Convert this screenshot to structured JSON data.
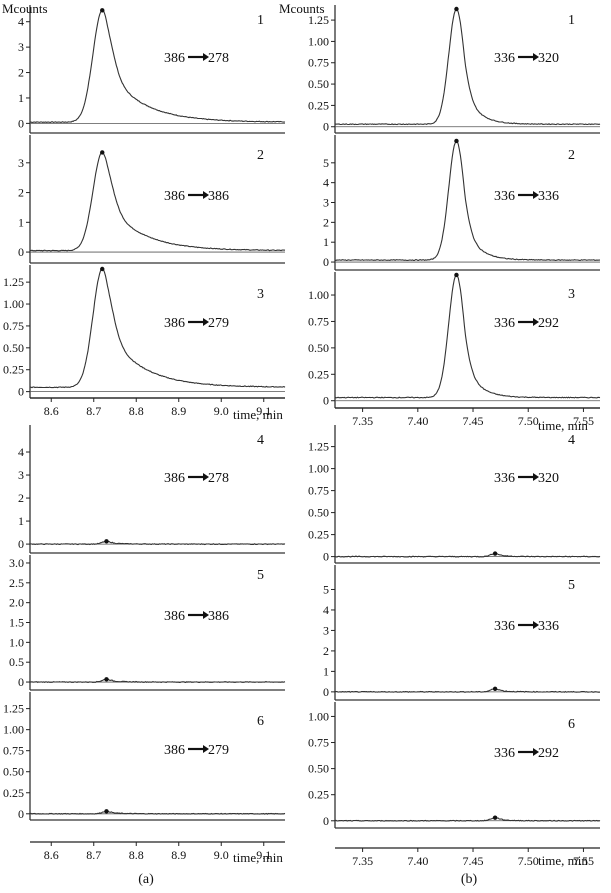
{
  "figure": {
    "columns": [
      {
        "label": "(a)",
        "y_unit_label": "Mcounts",
        "x_axis_title": "time, min",
        "x_ticks": [
          "8.6",
          "8.7",
          "8.8",
          "8.9",
          "9.0",
          "9.1"
        ],
        "xlim": [
          8.55,
          9.15
        ]
      },
      {
        "label": "(b)",
        "y_unit_label": "Mcounts",
        "x_axis_title": "time, min",
        "x_ticks": [
          "7.35",
          "7.40",
          "7.45",
          "7.50",
          "7.55"
        ],
        "xlim": [
          7.325,
          7.565
        ]
      }
    ]
  },
  "chart_data": [
    {
      "type": "line",
      "column": "a",
      "panel": "1",
      "transition": [
        "386",
        "278"
      ],
      "ylim": [
        -0.3,
        4.5
      ],
      "y_ticks": [
        "0",
        "1",
        "2",
        "3",
        "4"
      ],
      "peak": {
        "time": 8.72,
        "height": 4.4,
        "rise_width": 0.022,
        "tail_decay": 0.08,
        "baseline": 0.05
      }
    },
    {
      "type": "line",
      "column": "a",
      "panel": "2",
      "transition": [
        "386",
        "386"
      ],
      "ylim": [
        -0.3,
        3.8
      ],
      "y_ticks": [
        "0",
        "1",
        "2",
        "3"
      ],
      "peak": {
        "time": 8.72,
        "height": 3.3,
        "rise_width": 0.022,
        "tail_decay": 0.08,
        "baseline": 0.05
      }
    },
    {
      "type": "line",
      "column": "a",
      "panel": "3",
      "transition": [
        "386",
        "279"
      ],
      "ylim": [
        -0.05,
        1.4
      ],
      "y_ticks": [
        "0",
        "0.25",
        "0.50",
        "0.75",
        "1.00",
        "1.25"
      ],
      "peak": {
        "time": 8.72,
        "height": 1.35,
        "rise_width": 0.022,
        "tail_decay": 0.08,
        "baseline": 0.05
      }
    },
    {
      "type": "line",
      "column": "a",
      "panel": "4",
      "transition": [
        "386",
        "278"
      ],
      "ylim": [
        -0.3,
        5.0
      ],
      "y_ticks": [
        "0",
        "1",
        "2",
        "3",
        "4"
      ],
      "peak": {
        "time": 8.73,
        "height": 0.12,
        "rise_width": 0.01,
        "tail_decay": 0.03,
        "baseline": 0.0
      }
    },
    {
      "type": "line",
      "column": "a",
      "panel": "5",
      "transition": [
        "386",
        "386"
      ],
      "ylim": [
        -0.15,
        3.1
      ],
      "y_ticks": [
        "0",
        "0.5",
        "1.0",
        "1.5",
        "2.0",
        "2.5",
        "3.0"
      ],
      "peak": {
        "time": 8.73,
        "height": 0.07,
        "rise_width": 0.01,
        "tail_decay": 0.03,
        "baseline": 0.0
      }
    },
    {
      "type": "line",
      "column": "a",
      "panel": "6",
      "transition": [
        "386",
        "279"
      ],
      "ylim": [
        -0.05,
        1.4
      ],
      "y_ticks": [
        "0",
        "0.25",
        "0.50",
        "0.75",
        "1.00",
        "1.25"
      ],
      "peak": {
        "time": 8.73,
        "height": 0.03,
        "rise_width": 0.01,
        "tail_decay": 0.03,
        "baseline": 0.0
      }
    },
    {
      "type": "line",
      "column": "b",
      "panel": "1",
      "transition": [
        "336",
        "320"
      ],
      "ylim": [
        -0.05,
        1.38
      ],
      "y_ticks": [
        "0",
        "0.25",
        "0.50",
        "0.75",
        "1.00",
        "1.25"
      ],
      "peak": {
        "time": 7.435,
        "height": 1.35,
        "rise_width": 0.007,
        "tail_decay": 0.012,
        "baseline": 0.03
      }
    },
    {
      "type": "line",
      "column": "b",
      "panel": "2",
      "transition": [
        "336",
        "336"
      ],
      "ylim": [
        -0.3,
        6.2
      ],
      "y_ticks": [
        "0",
        "1",
        "2",
        "3",
        "4",
        "5"
      ],
      "peak": {
        "time": 7.435,
        "height": 6.0,
        "rise_width": 0.007,
        "tail_decay": 0.012,
        "baseline": 0.1
      }
    },
    {
      "type": "line",
      "column": "b",
      "panel": "3",
      "transition": [
        "336",
        "292"
      ],
      "ylim": [
        -0.05,
        1.18
      ],
      "y_ticks": [
        "0",
        "0.25",
        "0.50",
        "0.75",
        "1.00"
      ],
      "peak": {
        "time": 7.435,
        "height": 1.16,
        "rise_width": 0.007,
        "tail_decay": 0.012,
        "baseline": 0.03
      }
    },
    {
      "type": "line",
      "column": "b",
      "panel": "4",
      "transition": [
        "336",
        "320"
      ],
      "ylim": [
        -0.05,
        1.45
      ],
      "y_ticks": [
        "0",
        "0.25",
        "0.50",
        "0.75",
        "1.00",
        "1.25"
      ],
      "peak": {
        "time": 7.47,
        "height": 0.035,
        "rise_width": 0.004,
        "tail_decay": 0.01,
        "baseline": 0.0
      }
    },
    {
      "type": "line",
      "column": "b",
      "panel": "5",
      "transition": [
        "336",
        "336"
      ],
      "ylim": [
        -0.3,
        6.0
      ],
      "y_ticks": [
        "0",
        "1",
        "2",
        "3",
        "4",
        "5"
      ],
      "peak": {
        "time": 7.47,
        "height": 0.15,
        "rise_width": 0.004,
        "tail_decay": 0.01,
        "baseline": 0.0
      }
    },
    {
      "type": "line",
      "column": "b",
      "panel": "6",
      "transition": [
        "336",
        "292"
      ],
      "ylim": [
        -0.05,
        1.1
      ],
      "y_ticks": [
        "0",
        "0.25",
        "0.50",
        "0.75",
        "1.00"
      ],
      "peak": {
        "time": 7.47,
        "height": 0.03,
        "rise_width": 0.004,
        "tail_decay": 0.01,
        "baseline": 0.0
      }
    }
  ]
}
